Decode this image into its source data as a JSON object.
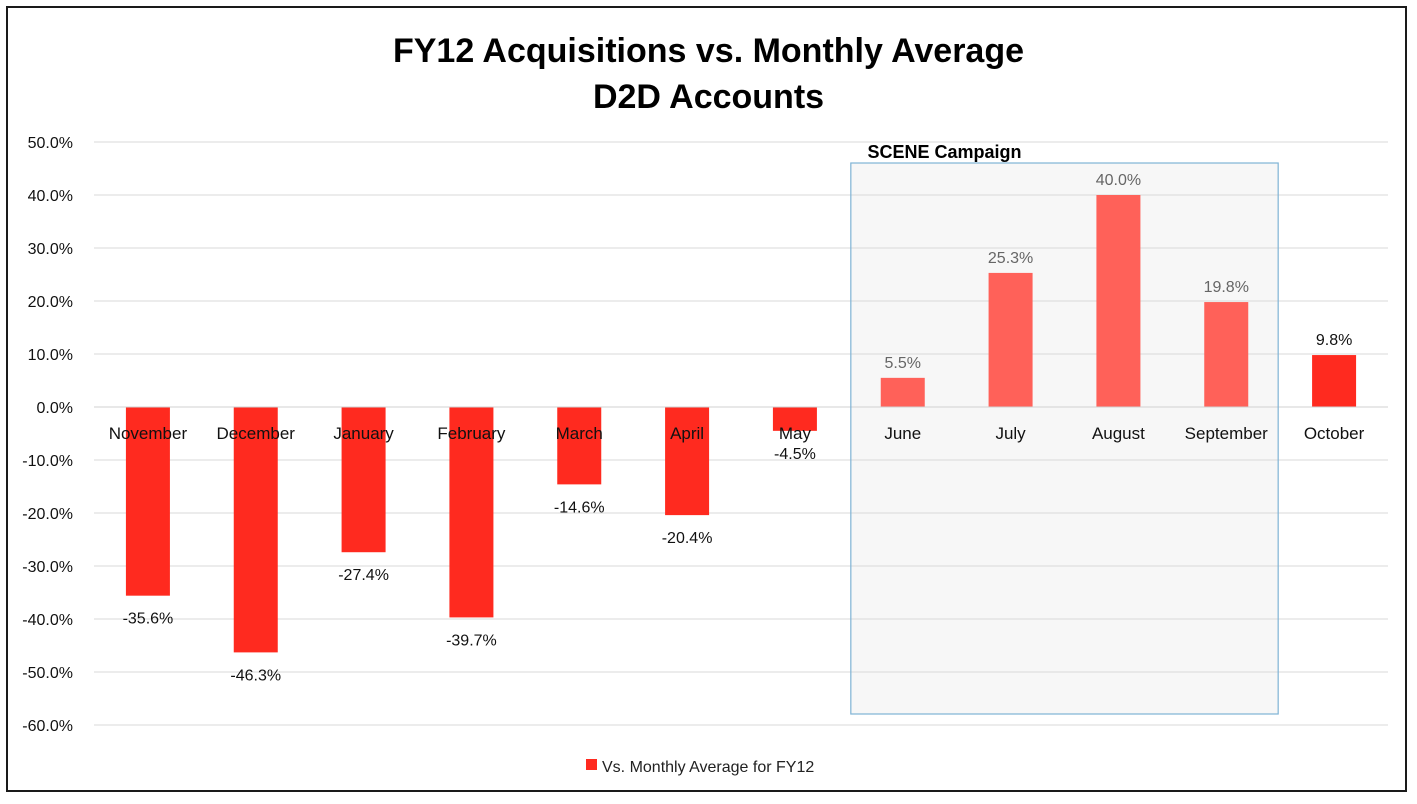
{
  "chart_data": {
    "type": "bar",
    "title": "FY12 Acquisitions vs. Monthly Average",
    "subtitle": "D2D Accounts",
    "categories": [
      "November",
      "December",
      "January",
      "February",
      "March",
      "April",
      "May",
      "June",
      "July",
      "August",
      "September",
      "October"
    ],
    "series": [
      {
        "name": "Vs. Monthly Average for FY12",
        "values": [
          -35.6,
          -46.3,
          -27.4,
          -39.7,
          -14.6,
          -20.4,
          -4.5,
          5.5,
          25.3,
          40.0,
          19.8,
          9.8
        ],
        "data_labels": [
          "-35.6%",
          "-46.3%",
          "-27.4%",
          "-39.7%",
          "-14.6%",
          "-20.4%",
          "-4.5%",
          "5.5%",
          "25.3%",
          "40.0%",
          "19.8%",
          "9.8%"
        ]
      }
    ],
    "ylim": [
      -60,
      50
    ],
    "yticks": [
      50,
      40,
      30,
      20,
      10,
      0,
      -10,
      -20,
      -30,
      -40,
      -50,
      -60
    ],
    "ytick_labels": [
      "50.0%",
      "40.0%",
      "30.0%",
      "20.0%",
      "10.0%",
      "0.0%",
      "-10.0%",
      "-20.0%",
      "-30.0%",
      "-40.0%",
      "-50.0%",
      "-60.0%"
    ],
    "grid": true,
    "legend": "bottom-center",
    "annotation": {
      "text": "SCENE Campaign",
      "categories": [
        "June",
        "July",
        "August",
        "September"
      ]
    },
    "colors": {
      "bar": "#ff2a1f",
      "bar_highlight": "#ff6159",
      "grid": "#d9d9d9",
      "highlight_fill": "#f7f7f7",
      "highlight_border": "#7fb3d5",
      "highlight_label": "#666666"
    }
  }
}
